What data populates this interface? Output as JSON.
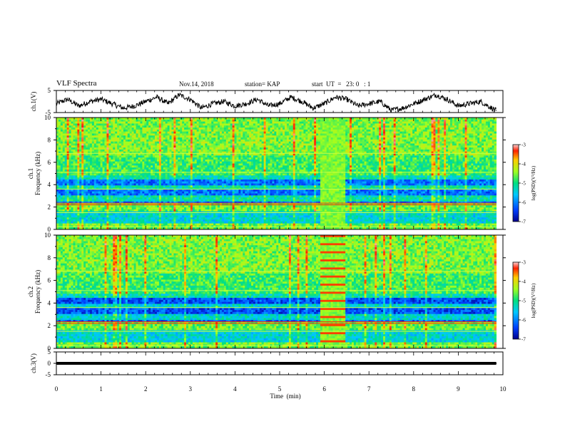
{
  "header": {
    "title": "VLF Spectra",
    "date": "Nov.14, 2018",
    "station": "station= KAP",
    "start": "start  UT  =   23: 0   : 1"
  },
  "chart_data": [
    {
      "type": "line",
      "panel": "ch1-waveform",
      "ylabel": "ch.1(V)",
      "ylim": [
        -5,
        5
      ],
      "yticks": [
        "5",
        "-5"
      ],
      "xlim": [
        0,
        10
      ],
      "color": "#000000",
      "x": [
        0,
        0.25,
        0.5,
        0.75,
        1,
        1.25,
        1.5,
        1.75,
        2,
        2.25,
        2.5,
        2.75,
        3,
        3.25,
        3.5,
        3.75,
        4,
        4.25,
        4.5,
        4.75,
        5,
        5.25,
        5.5,
        5.75,
        6,
        6.25,
        6.5,
        6.75,
        7,
        7.25,
        7.5,
        7.75,
        8,
        8.25,
        8.5,
        8.75,
        9,
        9.25,
        9.5,
        9.75,
        9.85
      ],
      "y": [
        -1,
        1,
        -2,
        0,
        1,
        -1,
        -3,
        -2,
        0,
        2,
        -1,
        3,
        1,
        -3,
        -1,
        0,
        -2,
        -1,
        1,
        -2,
        -1,
        2,
        0,
        -3,
        -1,
        2,
        1,
        -2,
        -1,
        0,
        -4,
        -3,
        -1,
        1,
        3,
        1,
        -2,
        -1,
        0,
        -3,
        -4
      ]
    },
    {
      "type": "heatmap",
      "panel": "ch1-spectrogram",
      "ylabel": "ch.1\nFrequency (kHz)",
      "ylim": [
        0,
        10
      ],
      "yticks": [
        "0",
        "2",
        "4",
        "6",
        "8",
        "10"
      ],
      "xlim": [
        0,
        10
      ],
      "colorbar": {
        "label": "log(PSD)(V²/Hz)",
        "range": [
          -7,
          -3
        ],
        "ticks": [
          "-3",
          "-4",
          "-5",
          "-6",
          "-7"
        ]
      }
    },
    {
      "type": "heatmap",
      "panel": "ch2-spectrogram",
      "ylabel": "ch.2\nFrequency (kHz)",
      "ylim": [
        0,
        10
      ],
      "yticks": [
        "0",
        "2",
        "4",
        "6",
        "8",
        "10"
      ],
      "xlim": [
        0,
        10
      ],
      "colorbar": {
        "label": "log(PSD)(V²/Hz)",
        "range": [
          -7,
          -3
        ],
        "ticks": [
          "-3",
          "-4",
          "-5",
          "-6",
          "-7"
        ]
      }
    },
    {
      "type": "line",
      "panel": "ch3-waveform",
      "ylabel": "ch.3(V)",
      "ylim": [
        -5,
        5
      ],
      "yticks": [
        "5",
        "0",
        "-5"
      ],
      "xlim": [
        0,
        10
      ],
      "color": "#000000",
      "x": [
        0,
        9.85
      ],
      "y": [
        0,
        0
      ]
    }
  ],
  "x_axis": {
    "label": "Time  (min)",
    "ticks": [
      "0",
      "1",
      "2",
      "3",
      "4",
      "5",
      "6",
      "7",
      "8",
      "9",
      "10"
    ]
  }
}
